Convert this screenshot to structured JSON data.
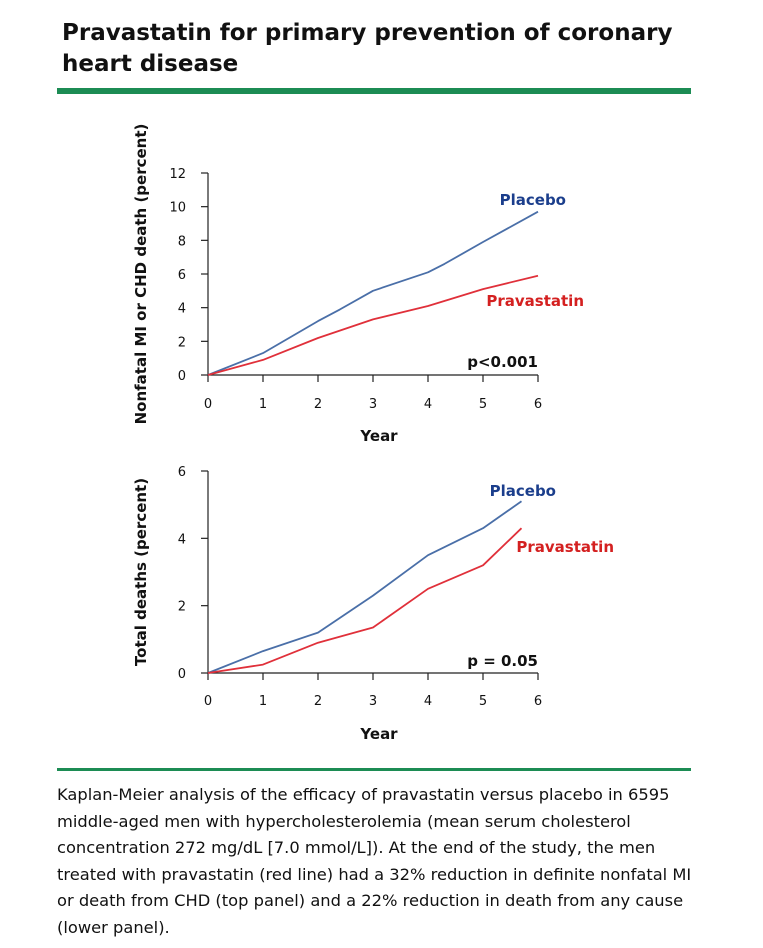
{
  "title": "Pravastatin for primary prevention of coronary heart disease",
  "caption": "Kaplan-Meier analysis of the efficacy of pravastatin versus placebo in 6595 middle-aged men with hypercholesterolemia (mean serum cholesterol concentration 272 mg/dL [7.0 mmol/L]). At the end of the study, the men treated with pravastatin (red line) had a 32% reduction in definite nonfatal MI or death from CHD (top panel) and a 22% reduction in death from any cause (lower panel).",
  "colors": {
    "accent_rule": "#1c8c54",
    "placebo": "#4a6fa8",
    "placebo_label": "#1b3e8c",
    "pravastatin": "#e0303a",
    "pravastatin_label": "#d42020"
  },
  "chart_data": [
    {
      "type": "line",
      "xlabel": "Year",
      "ylabel": "Nonfatal MI or CHD death (percent)",
      "xlim": [
        0,
        6
      ],
      "ylim": [
        0,
        12
      ],
      "xticks": [
        "0",
        "1",
        "2",
        "3",
        "4",
        "5",
        "6"
      ],
      "yticks": [
        "0",
        "2",
        "4",
        "6",
        "8",
        "10",
        "12"
      ],
      "grid": false,
      "annotation": "p<0.001",
      "series": [
        {
          "name": "Placebo",
          "x": [
            0,
            1,
            2,
            2.4,
            3,
            4,
            4.3,
            5,
            6
          ],
          "y": [
            0,
            1.3,
            3.2,
            3.9,
            5.0,
            6.1,
            6.6,
            7.9,
            9.7
          ]
        },
        {
          "name": "Pravastatin",
          "x": [
            0,
            1,
            2,
            3,
            4,
            5,
            6
          ],
          "y": [
            0,
            0.9,
            2.2,
            3.3,
            4.1,
            5.1,
            5.9
          ]
        }
      ]
    },
    {
      "type": "line",
      "xlabel": "Year",
      "ylabel": "Total deaths (percent)",
      "xlim": [
        0,
        6
      ],
      "ylim": [
        0,
        6
      ],
      "xticks": [
        "0",
        "1",
        "2",
        "3",
        "4",
        "5",
        "6"
      ],
      "yticks": [
        "0",
        "2",
        "4",
        "6"
      ],
      "grid": false,
      "annotation": "p = 0.05",
      "series": [
        {
          "name": "Placebo",
          "x": [
            0,
            1,
            2,
            3,
            4,
            5,
            5.7
          ],
          "y": [
            0,
            0.65,
            1.2,
            2.3,
            3.5,
            4.3,
            5.1
          ]
        },
        {
          "name": "Pravastatin",
          "x": [
            0,
            1,
            2,
            3,
            4,
            5,
            5.7
          ],
          "y": [
            0,
            0.25,
            0.9,
            1.35,
            2.5,
            3.2,
            4.3
          ]
        }
      ]
    }
  ]
}
